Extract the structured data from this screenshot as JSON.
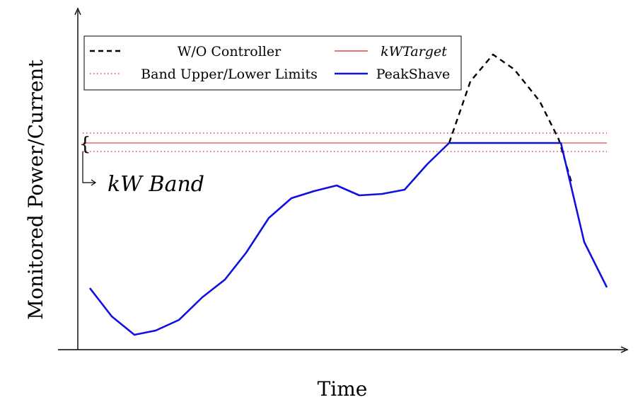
{
  "chart_data": {
    "type": "line",
    "title": "",
    "xlabel": "Time",
    "ylabel": "Monitored Power/Current",
    "x_ticks": [],
    "y_ticks": [],
    "grid": false,
    "legend_position": "top-left",
    "legend": [
      {
        "name": "W/O Controller",
        "style": "dashed",
        "color": "#000000"
      },
      {
        "name": "kWTarget",
        "style": "solid-thin",
        "color": "#d62020"
      },
      {
        "name": "Band Upper/Lower Limits",
        "style": "dotted",
        "color": "#d62020"
      },
      {
        "name": "PeakShave",
        "style": "solid-thick",
        "color": "#1010e0"
      }
    ],
    "annotations": [
      {
        "text": "kW Band",
        "target": "band between upper and lower limits"
      }
    ],
    "target_level": 202,
    "band_upper": 188,
    "band_lower": 214,
    "series": [
      {
        "name": "W/O Controller",
        "color": "#000000",
        "points": [
          [
            635,
            202
          ],
          [
            665,
            115
          ],
          [
            697,
            77
          ],
          [
            727,
            98
          ],
          [
            763,
            143
          ],
          [
            790,
            197
          ],
          [
            808,
            258
          ]
        ]
      },
      {
        "name": "PeakShave",
        "color": "#1010e0",
        "points": [
          [
            127,
            407
          ],
          [
            158,
            447
          ],
          [
            190,
            473
          ],
          [
            220,
            467
          ],
          [
            253,
            452
          ],
          [
            286,
            420
          ],
          [
            318,
            395
          ],
          [
            348,
            357
          ],
          [
            380,
            308
          ],
          [
            412,
            280
          ],
          [
            444,
            270
          ],
          [
            476,
            262
          ],
          [
            508,
            276
          ],
          [
            540,
            274
          ],
          [
            572,
            268
          ],
          [
            604,
            232
          ],
          [
            635,
            202
          ],
          [
            793,
            202
          ],
          [
            826,
            342
          ],
          [
            858,
            406
          ]
        ]
      }
    ]
  }
}
